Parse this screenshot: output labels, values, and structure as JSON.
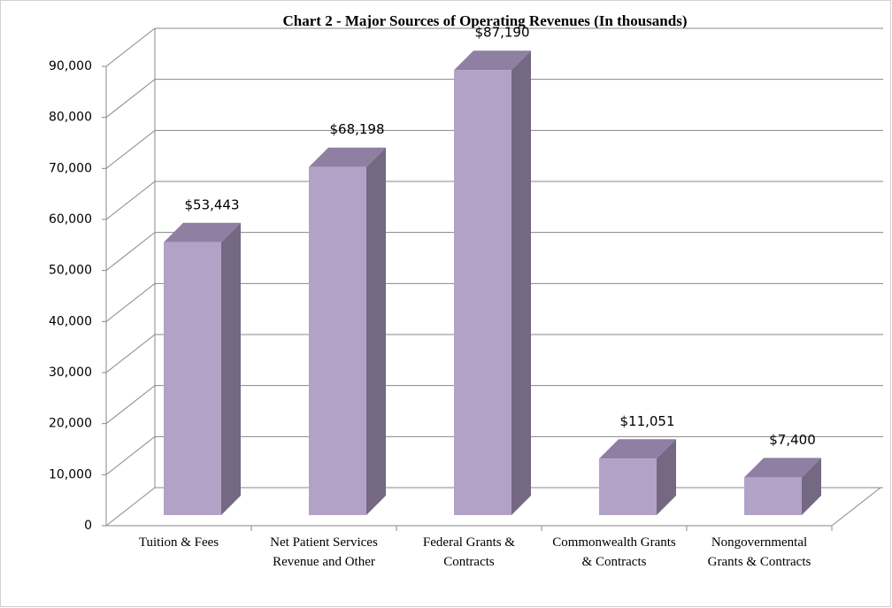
{
  "chart_data": {
    "type": "bar3d",
    "title": "Chart 2 - Major Sources of Operating Revenues (In thousands)",
    "categories": [
      "Tuition & Fees",
      "Net Patient Services Revenue and Other",
      "Federal Grants & Contracts",
      "Commonwealth Grants & Contracts",
      "Nongovernmental Grants & Contracts"
    ],
    "values": [
      53443,
      68198,
      87190,
      11051,
      7400
    ],
    "value_labels": [
      "$53,443",
      "$68,198",
      "$87,190",
      "$11,051",
      "$7,400"
    ],
    "color": "#b3a2c7",
    "ylim": [
      0,
      90000
    ],
    "yticks": [
      0,
      {
        "value": 10000,
        "label": "10,000"
      },
      {
        "value": 20000,
        "label": "20,000"
      },
      {
        "value": 30000,
        "label": "30,000"
      },
      {
        "value": 40000,
        "label": "40,000"
      },
      {
        "value": 50000,
        "label": "50,000"
      },
      {
        "value": 60000,
        "label": "60,000"
      },
      {
        "value": 70000,
        "label": "70,000"
      },
      {
        "value": 80000,
        "label": "80,000"
      },
      {
        "value": 90000,
        "label": "90,000"
      }
    ],
    "grid": true
  }
}
